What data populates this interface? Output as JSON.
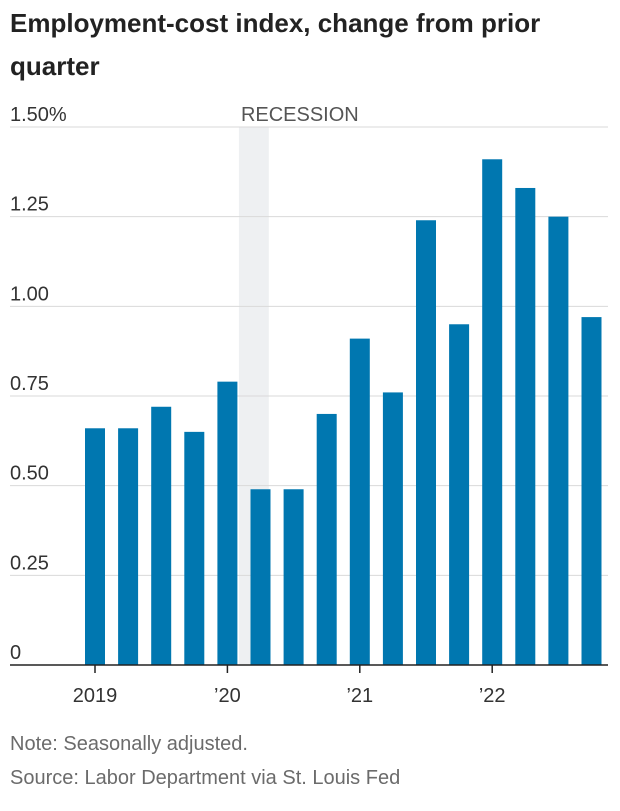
{
  "chart_data": {
    "type": "bar",
    "title": "Employment-cost index, change from prior quarter",
    "unit": "%",
    "ylim": [
      0,
      1.5
    ],
    "yticks": [
      0,
      0.25,
      0.5,
      0.75,
      1.0,
      1.25,
      1.5
    ],
    "ytick_labels": [
      "0",
      "0.25",
      "0.50",
      "0.75",
      "1.00",
      "1.25",
      "1.50%"
    ],
    "categories": [
      "2019 Q1",
      "2019 Q2",
      "2019 Q3",
      "2019 Q4",
      "2020 Q1",
      "2020 Q2",
      "2020 Q3",
      "2020 Q4",
      "2021 Q1",
      "2021 Q2",
      "2021 Q3",
      "2021 Q4",
      "2022 Q1",
      "2022 Q2",
      "2022 Q3",
      "2022 Q4"
    ],
    "values": [
      0.66,
      0.66,
      0.72,
      0.65,
      0.79,
      0.49,
      0.49,
      0.7,
      0.91,
      0.76,
      1.24,
      0.95,
      1.41,
      1.33,
      1.25,
      0.97
    ],
    "xtick_labels": [
      {
        "label": "2019",
        "index": 0
      },
      {
        "label": "’20",
        "index": 4
      },
      {
        "label": "’21",
        "index": 8
      },
      {
        "label": "’22",
        "index": 12
      }
    ],
    "recession": {
      "label": "RECESSION",
      "start_index": 4.5,
      "end_index": 5.1
    },
    "grid": true,
    "bar_color": "#0077b0",
    "grid_color": "#d9d9d9",
    "recession_color": "#eef0f2"
  },
  "note": "Note: Seasonally adjusted.",
  "source": "Source: Labor Department via St. Louis Fed"
}
